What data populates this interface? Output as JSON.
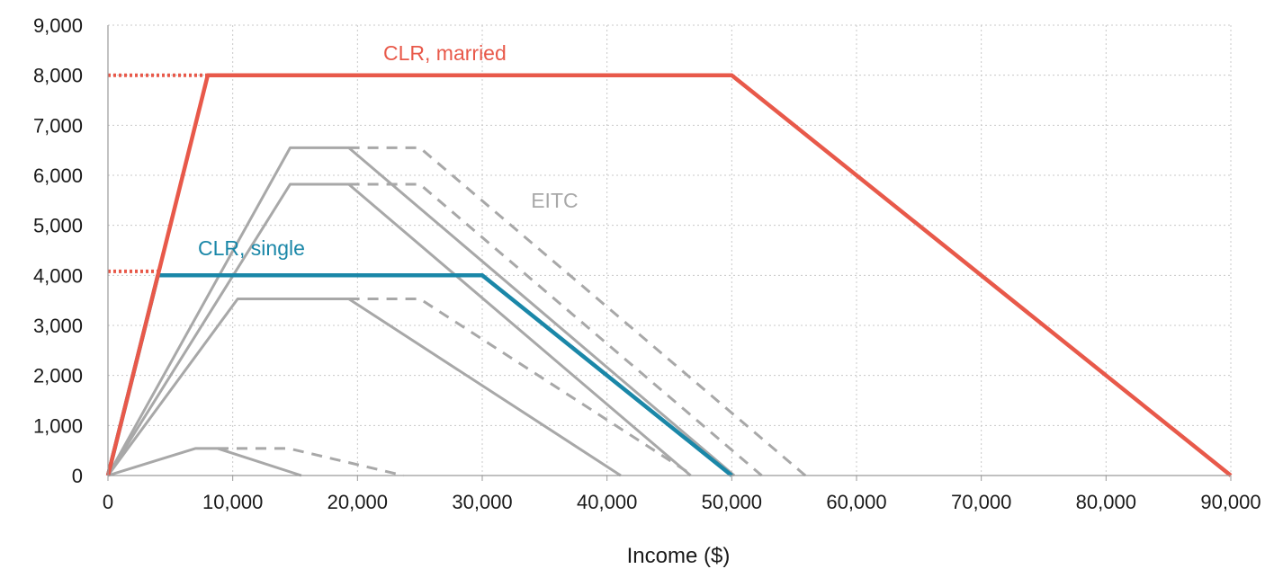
{
  "chart_data": {
    "type": "line",
    "title": "",
    "xlabel": "Income ($)",
    "ylabel": "",
    "xlim": [
      0,
      90000
    ],
    "ylim": [
      0,
      9000
    ],
    "x_ticks": [
      0,
      10000,
      20000,
      30000,
      40000,
      50000,
      60000,
      70000,
      80000,
      90000
    ],
    "x_tick_labels": [
      "0",
      "10,000",
      "20,000",
      "30,000",
      "40,000",
      "50,000",
      "60,000",
      "70,000",
      "80,000",
      "90,000"
    ],
    "y_ticks": [
      0,
      1000,
      2000,
      3000,
      4000,
      5000,
      6000,
      7000,
      8000,
      9000
    ],
    "y_tick_labels": [
      "0",
      "1,000",
      "2,000",
      "3,000",
      "4,000",
      "5,000",
      "6,000",
      "7,000",
      "8,000",
      "9,000"
    ],
    "grid": true,
    "colors": {
      "married": "#e8594a",
      "single": "#1a87a8",
      "eitc": "#a8a8a8",
      "grid": "#c8c8c8"
    },
    "annotations": [
      {
        "text": "CLR, married",
        "color": "#e8594a",
        "x": 27000,
        "y": 8300
      },
      {
        "text": "CLR, single",
        "color": "#1a87a8",
        "x": 11500,
        "y": 4400
      },
      {
        "text": "EITC",
        "color": "#a8a8a8",
        "x": 35800,
        "y": 5350
      }
    ],
    "series": [
      {
        "name": "",
        "group": "eitc",
        "style": "solid",
        "x": [
          0,
          7000,
          8800,
          15500
        ],
        "y": [
          0,
          540,
          540,
          0
        ]
      },
      {
        "name": "",
        "group": "eitc",
        "style": "dashed",
        "x": [
          8800,
          14500,
          23700
        ],
        "y": [
          540,
          540,
          0
        ]
      },
      {
        "name": "",
        "group": "eitc",
        "style": "solid",
        "x": [
          0,
          10400,
          19300,
          41100
        ],
        "y": [
          0,
          3530,
          3530,
          0
        ]
      },
      {
        "name": "",
        "group": "eitc",
        "style": "dashed",
        "x": [
          19300,
          25000,
          46900
        ],
        "y": [
          3530,
          3530,
          0
        ]
      },
      {
        "name": "",
        "group": "eitc",
        "style": "solid",
        "x": [
          0,
          14600,
          19300,
          46700
        ],
        "y": [
          0,
          5820,
          5820,
          0
        ]
      },
      {
        "name": "",
        "group": "eitc",
        "style": "dashed",
        "x": [
          19300,
          25000,
          52400
        ],
        "y": [
          5820,
          5820,
          0
        ]
      },
      {
        "name": "",
        "group": "eitc",
        "style": "solid",
        "x": [
          0,
          14600,
          19300,
          50200
        ],
        "y": [
          0,
          6550,
          6550,
          0
        ]
      },
      {
        "name": "",
        "group": "eitc",
        "style": "dashed",
        "x": [
          19300,
          25000,
          55900
        ],
        "y": [
          6550,
          6550,
          0
        ]
      },
      {
        "name": "",
        "group": "single",
        "style": "solid",
        "x": [
          0,
          4000,
          30000,
          50000
        ],
        "y": [
          0,
          4000,
          4000,
          0
        ]
      },
      {
        "name": "",
        "group": "married",
        "style": "solid",
        "x": [
          0,
          8000,
          50000,
          90000
        ],
        "y": [
          0,
          8000,
          8000,
          0
        ]
      },
      {
        "name": "",
        "group": "married",
        "style": "dotted",
        "x": [
          0,
          8000
        ],
        "y": [
          8000,
          8000
        ]
      },
      {
        "name": "",
        "group": "married",
        "style": "dotted",
        "x": [
          0,
          4000
        ],
        "y": [
          4080,
          4080
        ]
      }
    ]
  }
}
